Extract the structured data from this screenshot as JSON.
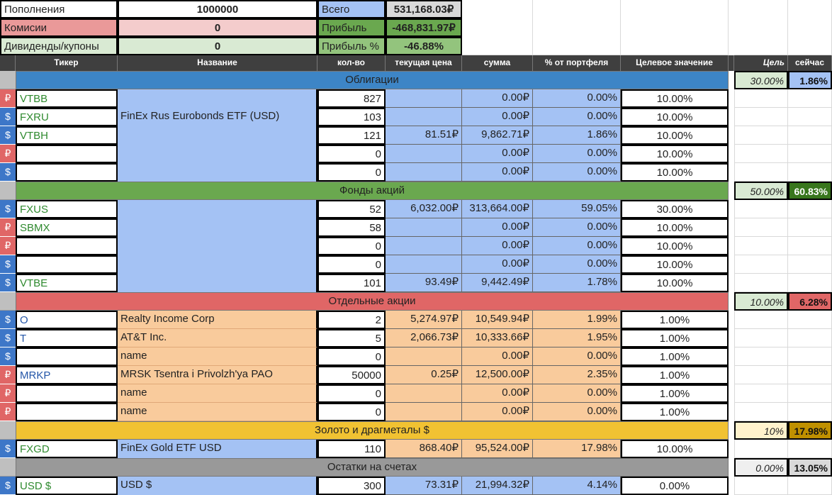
{
  "summary": {
    "deposits_label": "Пополнения",
    "deposits_value": "1000000",
    "fees_label": "Комисии",
    "fees_value": "0",
    "dividends_label": "Дивиденды/купоны",
    "dividends_value": "0",
    "total_label": "Всего",
    "total_value": "531,168.03₽",
    "profit_label": "Прибыль",
    "profit_value": "-468,831.97₽",
    "profit_pct_label": "Прибыль %",
    "profit_pct_value": "-46.88%"
  },
  "headers": {
    "ticker": "Тикер",
    "name": "Название",
    "qty": "кол-во",
    "price": "текущая цена",
    "sum": "сумма",
    "pct": "% от портфеля",
    "target": "Целевое значение",
    "goal": "Цель",
    "now": "сейчас"
  },
  "colors": {
    "bonds": "#3d85c6",
    "funds": "#6aa84f",
    "stocks": "#e06666",
    "gold": "#f1c232",
    "cash": "#999999",
    "blue_fill": "#a4c2f4",
    "orange_fill": "#f9cb9c"
  },
  "sections": {
    "bonds": {
      "title": "Облигации",
      "goal": "30.00%",
      "now": "1.86%",
      "rows": [
        {
          "cur": "₽",
          "ticker": "VTBB",
          "name": "",
          "qty": "827",
          "price": "",
          "sum": "0.00₽",
          "pct": "0.00%",
          "target": "10.00%"
        },
        {
          "cur": "$",
          "ticker": "FXRU",
          "name": "FinEx Rus Eurobonds ETF (USD)",
          "qty": "103",
          "price": "",
          "sum": "0.00₽",
          "pct": "0.00%",
          "target": "10.00%"
        },
        {
          "cur": "$",
          "ticker": "VTBH",
          "name": "",
          "qty": "121",
          "price": "81.51₽",
          "sum": "9,862.71₽",
          "pct": "1.86%",
          "target": "10.00%"
        },
        {
          "cur": "₽",
          "ticker": "",
          "name": "",
          "qty": "0",
          "price": "",
          "sum": "0.00₽",
          "pct": "0.00%",
          "target": "10.00%"
        },
        {
          "cur": "$",
          "ticker": "",
          "name": "",
          "qty": "0",
          "price": "",
          "sum": "0.00₽",
          "pct": "0.00%",
          "target": "10.00%"
        }
      ]
    },
    "funds": {
      "title": "Фонды акций",
      "goal": "50.00%",
      "now": "60.83%",
      "rows": [
        {
          "cur": "$",
          "ticker": "FXUS",
          "name": "",
          "qty": "52",
          "price": "6,032.00₽",
          "sum": "313,664.00₽",
          "pct": "59.05%",
          "target": "30.00%"
        },
        {
          "cur": "₽",
          "ticker": "SBMX",
          "name": "",
          "qty": "58",
          "price": "",
          "sum": "0.00₽",
          "pct": "0.00%",
          "target": "10.00%"
        },
        {
          "cur": "₽",
          "ticker": "",
          "name": "",
          "qty": "0",
          "price": "",
          "sum": "0.00₽",
          "pct": "0.00%",
          "target": "10.00%"
        },
        {
          "cur": "$",
          "ticker": "",
          "name": "",
          "qty": "0",
          "price": "",
          "sum": "0.00₽",
          "pct": "0.00%",
          "target": "10.00%"
        },
        {
          "cur": "$",
          "ticker": "VTBE",
          "name": "",
          "qty": "101",
          "price": "93.49₽",
          "sum": "9,442.49₽",
          "pct": "1.78%",
          "target": "10.00%"
        }
      ]
    },
    "stocks": {
      "title": "Отдельные акции",
      "goal": "10.00%",
      "now": "6.28%",
      "rows": [
        {
          "cur": "$",
          "ticker": "O",
          "name": "Realty Income Corp",
          "qty": "2",
          "price": "5,274.97₽",
          "sum": "10,549.94₽",
          "pct": "1.99%",
          "target": "1.00%"
        },
        {
          "cur": "$",
          "ticker": "T",
          "name": "AT&T Inc.",
          "qty": "5",
          "price": "2,066.73₽",
          "sum": "10,333.66₽",
          "pct": "1.95%",
          "target": "1.00%"
        },
        {
          "cur": "$",
          "ticker": "",
          "name": "name",
          "qty": "0",
          "price": "",
          "sum": "0.00₽",
          "pct": "0.00%",
          "target": "1.00%"
        },
        {
          "cur": "₽",
          "ticker": "MRKP",
          "name": "MRSK Tsentra i Privolzh'ya PAO",
          "qty": "50000",
          "price": "0.25₽",
          "sum": "12,500.00₽",
          "pct": "2.35%",
          "target": "1.00%"
        },
        {
          "cur": "₽",
          "ticker": "",
          "name": "name",
          "qty": "0",
          "price": "",
          "sum": "0.00₽",
          "pct": "0.00%",
          "target": "1.00%"
        },
        {
          "cur": "₽",
          "ticker": "",
          "name": "name",
          "qty": "0",
          "price": "",
          "sum": "0.00₽",
          "pct": "0.00%",
          "target": "1.00%"
        }
      ]
    },
    "gold": {
      "title": "Золото и драгметалы $",
      "goal": "10%",
      "now": "17.98%",
      "rows": [
        {
          "cur": "$",
          "ticker": "FXGD",
          "name": "FinEx Gold ETF USD",
          "qty": "110",
          "price": "868.40₽",
          "sum": "95,524.00₽",
          "pct": "17.98%",
          "target": "10.00%"
        }
      ]
    },
    "cash": {
      "title": "Остатки на счетах",
      "goal": "0.00%",
      "now": "13.05%",
      "rows": [
        {
          "cur": "$",
          "ticker": "USD $",
          "name": "USD $",
          "qty": "300",
          "price": "73.31₽",
          "sum": "21,994.32₽",
          "pct": "4.14%",
          "target": "0.00%"
        }
      ]
    }
  }
}
